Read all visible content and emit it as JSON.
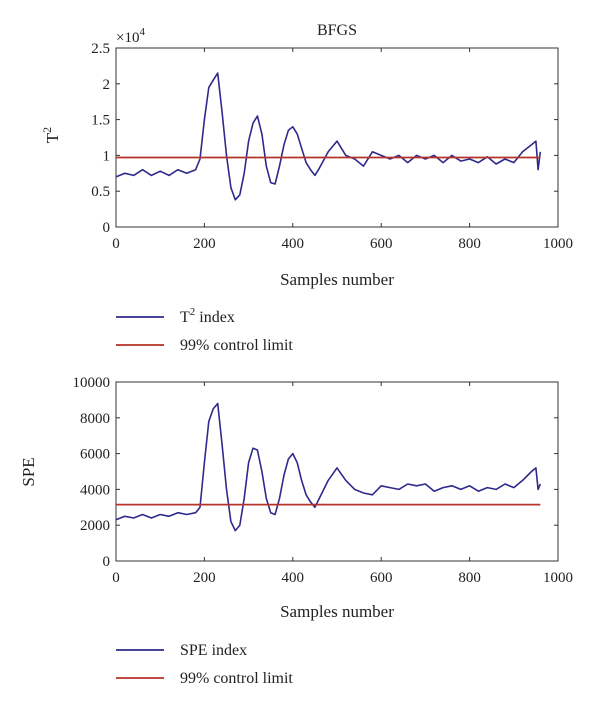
{
  "chart_data": [
    {
      "type": "line",
      "title": "BFGS",
      "xlabel": "Samples number",
      "ylabel_base": "T",
      "ylabel_sup": "2",
      "multiplier_text": "×10",
      "multiplier_exp": "4",
      "xlim": [
        0,
        1000
      ],
      "ylim": [
        0,
        2.5
      ],
      "xticks": [
        0,
        200,
        400,
        600,
        800,
        1000
      ],
      "yticks": [
        0,
        0.5,
        1,
        1.5,
        2,
        2.5
      ],
      "ytick_labels": [
        "0",
        "0.5",
        "1",
        "1.5",
        "2",
        "2.5"
      ],
      "legend_position": "below",
      "legend": [
        {
          "base": "T",
          "sup": "2",
          "rest": " index",
          "color": "#2e2a8c"
        },
        {
          "base": "99% control limit",
          "sup": "",
          "rest": "",
          "color": "#b5332a"
        }
      ],
      "series": [
        {
          "color": "#2e2a8c",
          "x": [
            0,
            20,
            40,
            60,
            80,
            100,
            120,
            140,
            160,
            180,
            190,
            200,
            210,
            220,
            230,
            240,
            250,
            260,
            270,
            280,
            290,
            300,
            310,
            320,
            330,
            340,
            350,
            360,
            370,
            380,
            390,
            400,
            410,
            420,
            430,
            440,
            450,
            460,
            480,
            500,
            520,
            540,
            560,
            580,
            600,
            620,
            640,
            660,
            680,
            700,
            720,
            740,
            760,
            780,
            800,
            820,
            840,
            860,
            880,
            900,
            920,
            940,
            950,
            955,
            960
          ],
          "y": [
            0.7,
            0.75,
            0.72,
            0.8,
            0.72,
            0.78,
            0.72,
            0.8,
            0.75,
            0.8,
            0.95,
            1.5,
            1.95,
            2.05,
            2.15,
            1.6,
            1.0,
            0.55,
            0.38,
            0.45,
            0.75,
            1.2,
            1.45,
            1.55,
            1.3,
            0.85,
            0.62,
            0.6,
            0.85,
            1.15,
            1.35,
            1.4,
            1.3,
            1.1,
            0.9,
            0.8,
            0.72,
            0.82,
            1.05,
            1.2,
            1.0,
            0.95,
            0.85,
            1.05,
            1.0,
            0.95,
            1.0,
            0.9,
            1.0,
            0.95,
            1.0,
            0.9,
            1.0,
            0.92,
            0.95,
            0.9,
            0.98,
            0.88,
            0.95,
            0.9,
            1.05,
            1.15,
            1.2,
            0.8,
            1.05
          ]
        },
        {
          "color": "#b5332a",
          "x": [
            0,
            960
          ],
          "y": [
            0.97,
            0.97
          ]
        }
      ]
    },
    {
      "type": "line",
      "xlabel": "Samples number",
      "ylabel_base": "SPE",
      "ylabel_sup": "",
      "xlim": [
        0,
        1000
      ],
      "ylim": [
        0,
        10000
      ],
      "xticks": [
        0,
        200,
        400,
        600,
        800,
        1000
      ],
      "yticks": [
        0,
        2000,
        4000,
        6000,
        8000,
        10000
      ],
      "ytick_labels": [
        "0",
        "2000",
        "4000",
        "6000",
        "8000",
        "10000"
      ],
      "legend_position": "below",
      "legend": [
        {
          "base": "SPE index",
          "sup": "",
          "rest": "",
          "color": "#2e2a8c"
        },
        {
          "base": "99% control limit",
          "sup": "",
          "rest": "",
          "color": "#b5332a"
        }
      ],
      "series": [
        {
          "color": "#2e2a8c",
          "x": [
            0,
            20,
            40,
            60,
            80,
            100,
            120,
            140,
            160,
            180,
            190,
            200,
            210,
            220,
            230,
            240,
            250,
            260,
            270,
            280,
            290,
            300,
            310,
            320,
            330,
            340,
            350,
            360,
            370,
            380,
            390,
            400,
            410,
            420,
            430,
            440,
            450,
            460,
            480,
            500,
            520,
            540,
            560,
            580,
            600,
            620,
            640,
            660,
            680,
            700,
            720,
            740,
            760,
            780,
            800,
            820,
            840,
            860,
            880,
            900,
            920,
            940,
            950,
            955,
            960
          ],
          "y": [
            2300,
            2500,
            2400,
            2600,
            2400,
            2600,
            2500,
            2700,
            2600,
            2700,
            3000,
            5500,
            7800,
            8500,
            8800,
            6500,
            4000,
            2200,
            1700,
            2000,
            3500,
            5500,
            6300,
            6200,
            5000,
            3500,
            2700,
            2600,
            3500,
            4800,
            5700,
            6000,
            5500,
            4500,
            3700,
            3300,
            3000,
            3500,
            4500,
            5200,
            4500,
            4000,
            3800,
            3700,
            4200,
            4100,
            4000,
            4300,
            4200,
            4300,
            3900,
            4100,
            4200,
            4000,
            4200,
            3900,
            4100,
            4000,
            4300,
            4100,
            4500,
            5000,
            5200,
            4000,
            4300
          ]
        },
        {
          "color": "#b5332a",
          "x": [
            0,
            960
          ],
          "y": [
            3150,
            3150
          ]
        }
      ]
    }
  ]
}
